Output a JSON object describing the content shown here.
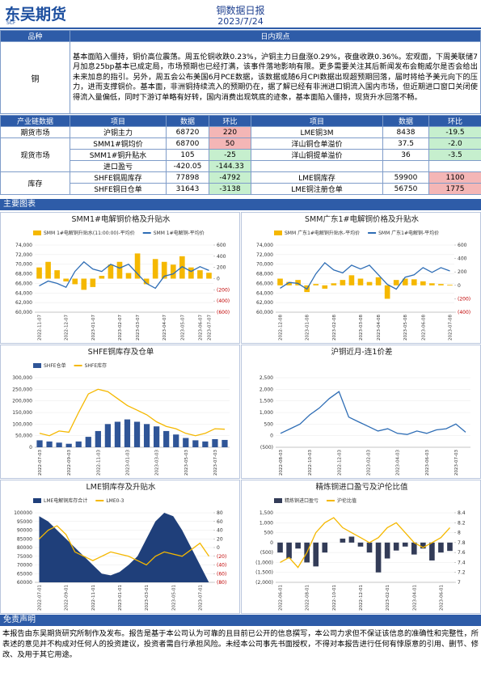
{
  "header": {
    "logo": "东吴期货",
    "logo_sub": "SCF",
    "title": "铜数据日报",
    "date": "2023/7/24"
  },
  "view_table": {
    "headers": [
      "品种",
      "日内观点"
    ],
    "rows": [
      [
        "铜",
        "基本面陷入僵持，铜价高位震荡。周五伦铜收跌0.23%，沪铜主力日盘涨0.29%，夜盘收跌0.36%。宏观面，下周美联储7月加息25bp基本已成定局，市场预期也已经打满，该事件落地影响有限。更多需要关注其后新闻发布会鲍威尔是否会给出未来加息的指引。另外，周五会公布美国6月PCE数据，该数据或随6月CPI数据出现超预期回落，届时将给予美元向下的压力，进而支撑铜价。基本面，非洲铜持续流入的预期仍在，据了解已经有非洲进口铜流入国内市场，但近期进口窗口关闭使得流入量偏低，同时下游订单略有好转，国内消费出现筑底的迹象，基本面陷入僵持，现货升水回落不畅。"
      ]
    ]
  },
  "data_table": {
    "headers": [
      "产业链数据",
      "项目",
      "数据",
      "环比",
      "项目",
      "数据",
      "环比"
    ],
    "groups": [
      {
        "label": "期货市场",
        "rows": [
          [
            "沪铜主力",
            "68720",
            "220",
            "LME铜3M",
            "8438",
            "-19.5"
          ]
        ]
      },
      {
        "label": "现货市场",
        "rows": [
          [
            "SMM1#铜均价",
            "68700",
            "50",
            "洋山铜仓单溢价",
            "37.5",
            "-2.0"
          ],
          [
            "SMM1#铜升贴水",
            "105",
            "-25",
            "洋山铜提单溢价",
            "36",
            "-3.5"
          ],
          [
            "进口盈亏",
            "-420.05",
            "-144.33"
          ]
        ]
      },
      {
        "label": "库存",
        "rows": [
          [
            "SHFE铜周库存",
            "77898",
            "-4792",
            "LME铜库存",
            "59900",
            "1100"
          ],
          [
            "SHFE铜日仓单",
            "31643",
            "-3138",
            "LME铜注册仓单",
            "56750",
            "1775"
          ]
        ]
      }
    ]
  },
  "sections": {
    "charts": "主要图表",
    "disclaimer": "免责声明"
  },
  "disclaimer": "本报告由东吴期货研究所制作及发布。报告是基于本公司认为可靠的且目前已公开的信息撰写，本公司力求但不保证该信息的准确性和完整性，所表述的意见并不构成对任何人的投资建议，投资者需自行承担风险。未经本公司事先书面授权，不得对本报告进行任何有悖原意的引用、删节、修改、及用于其它用途。",
  "chart_data": [
    {
      "type": "combo",
      "title": "SMM1#电解铜价格及升贴水",
      "legend": true,
      "grid": true,
      "categories": [
        "2022-11-07",
        null,
        null,
        "2022-12-07",
        null,
        null,
        "2023-01-07",
        null,
        null,
        "2023-02-07",
        null,
        "2023-03-07",
        null,
        null,
        "2023-04-07",
        null,
        "2023-05-07",
        null,
        "2023-06-07",
        "2023-07-07"
      ],
      "series": [
        {
          "name": "SMM 1#电解铜升贴水(11:00:00)-平均价",
          "kind": "bar",
          "axis": "y2",
          "color": "#f5b800",
          "values": [
            200,
            300,
            150,
            -50,
            -100,
            -200,
            -150,
            50,
            250,
            300,
            100,
            450,
            -100,
            350,
            300,
            250,
            400,
            200,
            150,
            105
          ]
        },
        {
          "name": "SMM 1#电解铜-平均价",
          "kind": "line",
          "color": "#2e6db5",
          "values": [
            65500,
            66500,
            66000,
            65200,
            68500,
            70500,
            69000,
            68500,
            70000,
            69200,
            70000,
            68000,
            66000,
            65000,
            67500,
            68000,
            69500,
            68500,
            69500,
            68700
          ]
        }
      ],
      "ylim": [
        60000,
        74000
      ],
      "yticks": [
        {
          "value": 60000,
          "label": "60,000"
        },
        {
          "value": 62000,
          "label": "62,000"
        },
        {
          "value": 64000,
          "label": "64,000"
        },
        {
          "value": 66000,
          "label": "66,000"
        },
        {
          "value": 68000,
          "label": "68,000"
        },
        {
          "value": 70000,
          "label": "70,000"
        },
        {
          "value": 72000,
          "label": "72,000"
        },
        {
          "value": 74000,
          "label": "74,000"
        }
      ],
      "y2lim": [
        -600,
        600
      ],
      "y2ticks": [
        600,
        400,
        200,
        0,
        {
          "value": -200,
          "label": "(200)"
        },
        {
          "value": -400,
          "label": "(400)"
        },
        {
          "value": -600,
          "label": "(600)"
        }
      ]
    },
    {
      "type": "combo",
      "title": "SMM广东1#电解铜价格及升贴水",
      "legend": true,
      "grid": true,
      "categories": [
        "2022-12-08",
        null,
        null,
        "2023-01-08",
        null,
        null,
        "2023-02-08",
        null,
        null,
        "2023-03-08",
        null,
        "2023-04-08",
        null,
        null,
        "2023-05-08",
        null,
        "2023-06-08",
        null,
        null,
        "2023-07-08"
      ],
      "series": [
        {
          "name": "SMM 广东1#电解铜升贴水-平均价",
          "kind": "bar",
          "axis": "y2",
          "color": "#f5b800",
          "values": [
            100,
            50,
            80,
            -100,
            20,
            -50,
            30,
            80,
            150,
            100,
            50,
            120,
            -200,
            80,
            100,
            90,
            60,
            30,
            20,
            10
          ]
        },
        {
          "name": "SMM 广东1#电解铜-平均价",
          "kind": "line",
          "color": "#2e6db5",
          "values": [
            65000,
            66200,
            66000,
            64800,
            68000,
            70300,
            68800,
            68200,
            69800,
            69000,
            69800,
            67800,
            65800,
            64800,
            67300,
            67800,
            69300,
            68300,
            69300,
            68600
          ]
        }
      ],
      "ylim": [
        60000,
        74000
      ],
      "yticks": [
        {
          "value": 60000,
          "label": "60,000"
        },
        {
          "value": 62000,
          "label": "62,000"
        },
        {
          "value": 64000,
          "label": "64,000"
        },
        {
          "value": 66000,
          "label": "66,000"
        },
        {
          "value": 68000,
          "label": "68,000"
        },
        {
          "value": 70000,
          "label": "70,000"
        },
        {
          "value": 72000,
          "label": "72,000"
        },
        {
          "value": 74000,
          "label": "74,000"
        }
      ],
      "y2lim": [
        -400,
        600
      ],
      "y2ticks": [
        600,
        400,
        200,
        0,
        {
          "value": -200,
          "label": "(200)"
        },
        {
          "value": -400,
          "label": "(400)"
        }
      ]
    },
    {
      "type": "combo",
      "title": "SHFE铜库存及仓单",
      "legend": true,
      "grid": true,
      "categories": [
        "2022-07-03",
        null,
        null,
        "2022-09-03",
        null,
        null,
        "2022-11-03",
        null,
        null,
        "2023-01-03",
        null,
        null,
        "2023-03-03",
        null,
        null,
        "2023-05-03",
        null,
        null,
        "2023-07-03",
        null
      ],
      "series": [
        {
          "name": "SHFE仓单",
          "kind": "bar",
          "color": "#2f5597",
          "values": [
            30000,
            25000,
            20000,
            15000,
            25000,
            45000,
            70000,
            100000,
            110000,
            120000,
            110000,
            100000,
            90000,
            70000,
            55000,
            40000,
            30000,
            25000,
            35000,
            31643
          ]
        },
        {
          "name": "SHFE库存",
          "kind": "line",
          "color": "#f5b800",
          "values": [
            60000,
            50000,
            70000,
            65000,
            150000,
            230000,
            250000,
            240000,
            210000,
            180000,
            160000,
            140000,
            110000,
            90000,
            80000,
            60000,
            50000,
            60000,
            80000,
            77898
          ]
        }
      ],
      "ylim": [
        0,
        300000
      ],
      "yticks": [
        0,
        {
          "value": 50000,
          "label": "50,000"
        },
        {
          "value": 100000,
          "label": "100,000"
        },
        {
          "value": 150000,
          "label": "150,000"
        },
        {
          "value": 200000,
          "label": "200,000"
        },
        {
          "value": 250000,
          "label": "250,000"
        },
        {
          "value": 300000,
          "label": "300,000"
        }
      ]
    },
    {
      "type": "line",
      "title": "沪铜近月-连1价差",
      "legend": false,
      "grid": true,
      "categories": [
        "2022-08-03",
        null,
        null,
        "2022-10-03",
        null,
        null,
        "2022-12-03",
        null,
        null,
        "2023-02-03",
        null,
        null,
        "2023-04-03",
        null,
        null,
        "2023-06-03",
        null,
        null,
        "2023-07-03",
        null
      ],
      "series": [
        {
          "kind": "line",
          "color": "#2e6db5",
          "values": [
            100,
            300,
            500,
            900,
            1200,
            1600,
            1900,
            800,
            600,
            400,
            200,
            300,
            100,
            50,
            200,
            100,
            250,
            300,
            500,
            150
          ]
        }
      ],
      "ylim": [
        -500,
        2500
      ],
      "yticks": [
        {
          "value": -500,
          "label": "(500)"
        },
        0,
        500,
        {
          "value": 1000,
          "label": "1,000"
        },
        {
          "value": 1500,
          "label": "1,500"
        },
        {
          "value": 2000,
          "label": "2,000"
        },
        {
          "value": 2500,
          "label": "2,500"
        }
      ]
    },
    {
      "type": "combo",
      "title": "LME铜库存及升贴水",
      "legend": true,
      "grid": true,
      "categories": [
        "2022-07-01",
        null,
        null,
        "2022-09-01",
        null,
        null,
        "2022-11-01",
        null,
        null,
        "2023-01-01",
        null,
        null,
        "2023-03-01",
        null,
        null,
        "2023-05-01",
        null,
        null,
        "2023-07-01",
        null
      ],
      "series": [
        {
          "name": "LME电解铜库存合计",
          "kind": "area",
          "color": "#1f3f7a",
          "values": [
            98000,
            95000,
            90000,
            85000,
            80000,
            75000,
            70000,
            65000,
            64000,
            66000,
            70000,
            75000,
            85000,
            95000,
            100000,
            98000,
            90000,
            80000,
            70000,
            59900
          ]
        },
        {
          "name": "LME0-3",
          "kind": "line",
          "axis": "y2",
          "color": "#f5b800",
          "values": [
            20,
            40,
            50,
            30,
            -10,
            -20,
            -30,
            -20,
            -10,
            -15,
            -20,
            -30,
            -40,
            -20,
            -10,
            -15,
            -20,
            -5,
            10,
            -20
          ]
        }
      ],
      "ylim": [
        60000,
        100000
      ],
      "yticks": [
        {
          "value": 60000,
          "label": "60000"
        },
        {
          "value": 65000,
          "label": "65000"
        },
        {
          "value": 70000,
          "label": "70000"
        },
        {
          "value": 75000,
          "label": "75000"
        },
        {
          "value": 80000,
          "label": "80000"
        },
        {
          "value": 85000,
          "label": "85000"
        },
        {
          "value": 90000,
          "label": "90000"
        },
        {
          "value": 95000,
          "label": "95000"
        },
        {
          "value": 100000,
          "label": "100000"
        }
      ],
      "y2lim": [
        -80,
        80
      ],
      "y2ticks": [
        80,
        60,
        40,
        20,
        0,
        {
          "value": -20,
          "label": "(20)"
        },
        {
          "value": -40,
          "label": "(40)"
        },
        {
          "value": -60,
          "label": "(60)"
        },
        {
          "value": -80,
          "label": "(80)"
        }
      ]
    },
    {
      "type": "combo",
      "title": "精炼铜进口盈亏及沪伦比值",
      "legend": true,
      "grid": true,
      "categories": [
        "2022-06-01",
        null,
        null,
        "2022-08-01",
        null,
        null,
        "2022-10-01",
        null,
        null,
        "2022-12-01",
        null,
        null,
        "2023-02-01",
        null,
        null,
        "2023-04-01",
        null,
        null,
        "2023-06-01",
        null
      ],
      "series": [
        {
          "name": "精炼铜进口盈亏",
          "kind": "bar",
          "color": "#333c58",
          "values": [
            -500,
            -800,
            -300,
            -1000,
            -1200,
            -500,
            0,
            200,
            300,
            -200,
            -500,
            -1500,
            -800,
            -400,
            -200,
            -600,
            -300,
            -900,
            -500,
            -420
          ]
        },
        {
          "name": "沪伦比值",
          "kind": "line",
          "axis": "y2",
          "color": "#f5b800",
          "values": [
            7.4,
            7.5,
            7.3,
            7.6,
            8.0,
            8.2,
            8.3,
            8.1,
            8.0,
            7.9,
            7.8,
            7.9,
            8.1,
            8.2,
            8.0,
            7.8,
            7.7,
            7.8,
            7.9,
            8.1
          ]
        }
      ],
      "ylim": [
        -2000,
        1500
      ],
      "yticks": [
        {
          "value": -2000,
          "label": "(2,000)"
        },
        {
          "value": -1500,
          "label": "(1,500)"
        },
        {
          "value": -1000,
          "label": "(1,000)"
        },
        {
          "value": -500,
          "label": "(500)"
        },
        0,
        500,
        {
          "value": 1000,
          "label": "1,000"
        },
        {
          "value": 1500,
          "label": "1,500"
        }
      ],
      "y2lim": [
        7,
        8.4
      ],
      "y2ticks": [
        7,
        7.2,
        7.4,
        7.6,
        7.8,
        8,
        8.2,
        8.4
      ]
    }
  ]
}
